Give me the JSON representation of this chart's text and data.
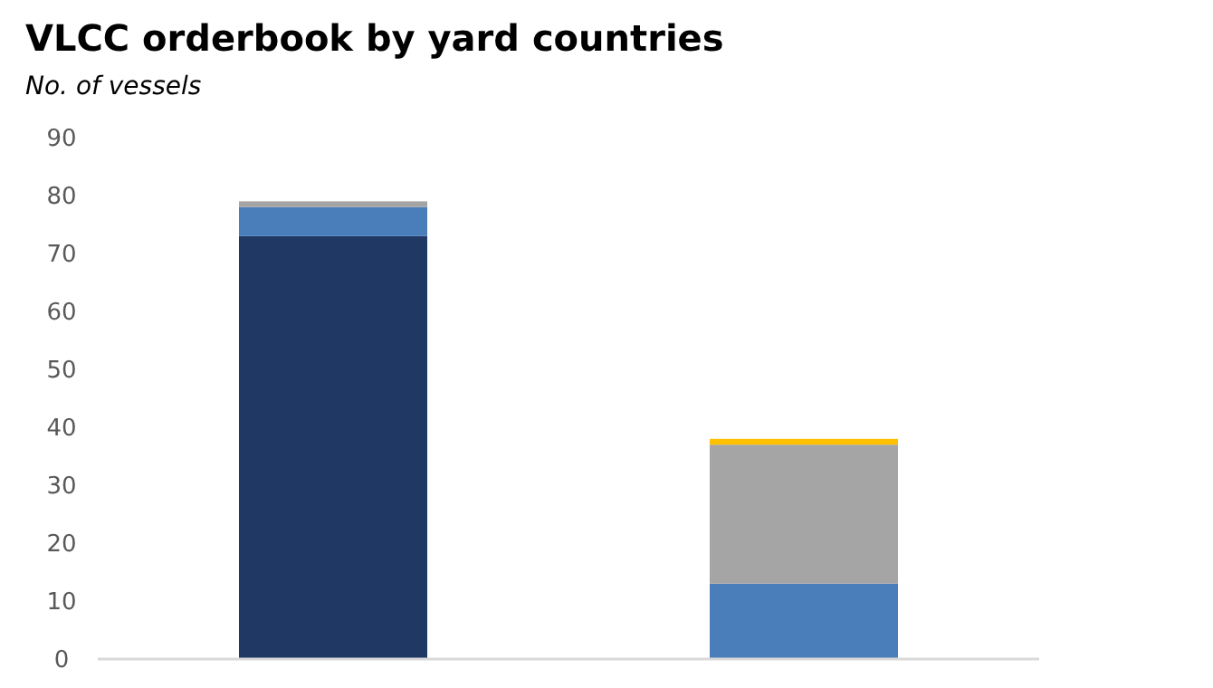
{
  "chart_data": {
    "type": "bar",
    "title": "VLCC orderbook by yard countries",
    "subtitle": "No. of vessels",
    "categories": [
      null,
      null
    ],
    "stacked": true,
    "series": [
      {
        "color": "#1f3864",
        "values": [
          73,
          null
        ]
      },
      {
        "color": "#4a7ebb",
        "values": [
          5,
          13
        ]
      },
      {
        "color": "#a5a5a5",
        "values": [
          1,
          24
        ]
      },
      {
        "color": "#ffc000",
        "values": [
          null,
          1
        ]
      }
    ],
    "ylim": [
      0,
      90
    ],
    "yticks": [
      0,
      10,
      20,
      30,
      40,
      50,
      60,
      70,
      80,
      90
    ]
  }
}
